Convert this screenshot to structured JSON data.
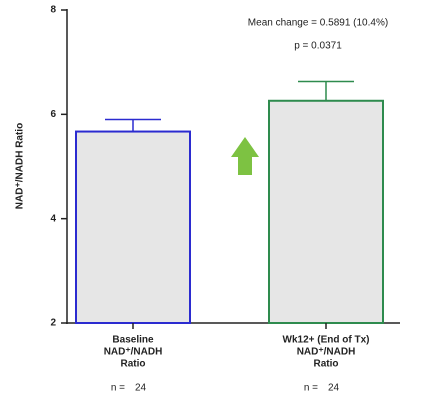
{
  "chart_data": {
    "type": "bar",
    "y_label": "NAD⁺/NADH Ratio",
    "categories": [
      [
        "Baseline",
        "NAD⁺/NADH",
        "Ratio"
      ],
      [
        "Wk12+ (End of Tx)",
        "NAD⁺/NADH",
        "Ratio"
      ]
    ],
    "values": [
      5.67,
      6.26
    ],
    "errors": [
      0.23,
      0.37
    ],
    "color": "#e6e6e6",
    "edge_colors": [
      "#2b2bd0",
      "#2e8b4e"
    ],
    "ylim": [
      2,
      8
    ],
    "yticks": [
      2,
      4,
      6,
      8
    ],
    "annotations": [
      "Mean change = 0.5891 (10.4%)",
      "p = 0.0371"
    ],
    "sample_size": {
      "label": "n =",
      "values": [
        24,
        24
      ]
    }
  }
}
